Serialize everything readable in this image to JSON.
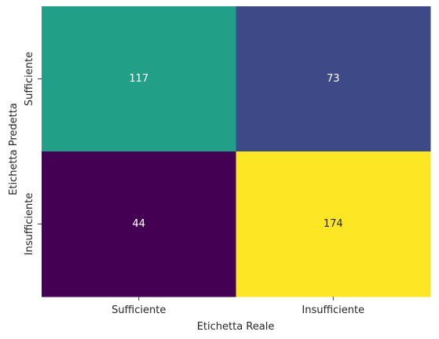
{
  "chart_data": {
    "type": "heatmap",
    "xlabel": "Etichetta Reale",
    "ylabel": "Etichetta Predetta",
    "x_categories": [
      "Sufficiente",
      "Insufficiente"
    ],
    "y_categories": [
      "Sufficiente",
      "Insufficiente"
    ],
    "values": [
      [
        117,
        73
      ],
      [
        44,
        174
      ]
    ],
    "colormap": "viridis",
    "value_range": [
      44,
      174
    ],
    "colorbar": false,
    "grid": false,
    "annotation_colors": {
      "light": "#ffffff",
      "dark": "#262626"
    }
  }
}
